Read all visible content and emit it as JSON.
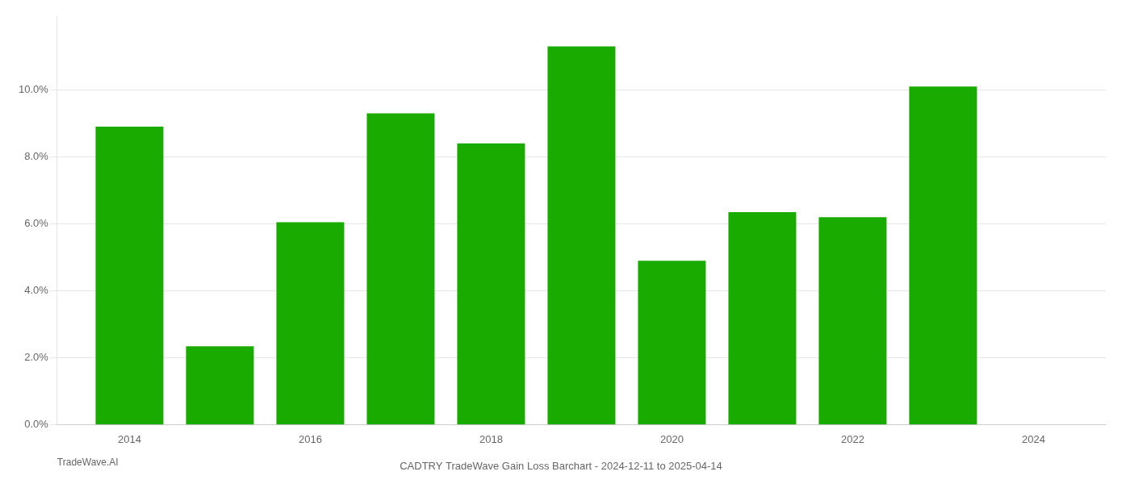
{
  "chart_data": {
    "type": "bar",
    "title": "CADTRY TradeWave Gain Loss Barchart - 2024-12-11 to 2025-04-14",
    "annotations": [
      "TradeWave.AI"
    ],
    "x": [
      2014,
      2015,
      2016,
      2017,
      2018,
      2019,
      2020,
      2021,
      2022,
      2023
    ],
    "values": [
      0.089,
      0.0235,
      0.0605,
      0.093,
      0.084,
      0.113,
      0.049,
      0.0635,
      0.062,
      0.101
    ],
    "color": "#1aab00",
    "xlim": [
      2013.2,
      2024.8
    ],
    "xticks": [
      2014,
      2016,
      2018,
      2020,
      2022,
      2024
    ],
    "ylim": [
      0,
      0.122
    ],
    "yticks": [
      {
        "value": 0.0,
        "label": "0.0%"
      },
      {
        "value": 0.02,
        "label": "2.0%"
      },
      {
        "value": 0.04,
        "label": "4.0%"
      },
      {
        "value": 0.06,
        "label": "6.0%"
      },
      {
        "value": 0.08,
        "label": "8.0%"
      },
      {
        "value": 0.1,
        "label": "10.0%"
      }
    ],
    "grid": true,
    "legend": false
  }
}
